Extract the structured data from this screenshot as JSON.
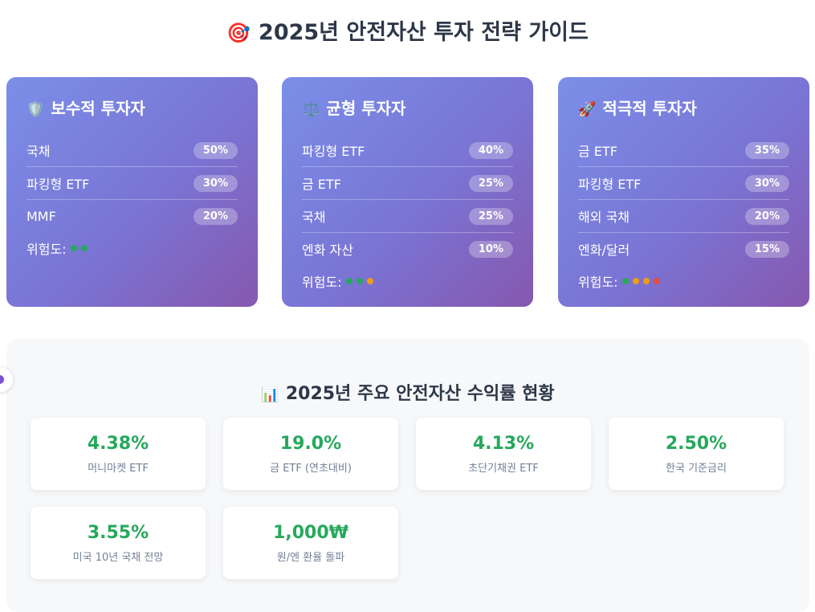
{
  "title": {
    "emoji": "🎯",
    "text": "2025년 안전자산 투자 전략 가이드"
  },
  "cards": [
    {
      "emoji": "🛡️",
      "title": "보수적 투자자",
      "rows": [
        {
          "label": "국채",
          "pct": "50%"
        },
        {
          "label": "파킹형 ETF",
          "pct": "30%"
        },
        {
          "label": "MMF",
          "pct": "20%"
        }
      ],
      "risk_label": "위험도:",
      "risk_dots": [
        "#27a85c",
        "#27a85c"
      ]
    },
    {
      "emoji": "⚖️",
      "title": "균형 투자자",
      "rows": [
        {
          "label": "파킹형 ETF",
          "pct": "40%"
        },
        {
          "label": "금 ETF",
          "pct": "25%"
        },
        {
          "label": "국채",
          "pct": "25%"
        },
        {
          "label": "엔화 자산",
          "pct": "10%"
        }
      ],
      "risk_label": "위험도:",
      "risk_dots": [
        "#27a85c",
        "#27a85c",
        "#f39c12"
      ]
    },
    {
      "emoji": "🚀",
      "title": "적극적 투자자",
      "rows": [
        {
          "label": "금 ETF",
          "pct": "35%"
        },
        {
          "label": "파킹형 ETF",
          "pct": "30%"
        },
        {
          "label": "해외 국채",
          "pct": "20%"
        },
        {
          "label": "엔화/달러",
          "pct": "15%"
        }
      ],
      "risk_label": "위험도:",
      "risk_dots": [
        "#27a85c",
        "#f39c12",
        "#f39c12",
        "#e74c3c"
      ]
    }
  ],
  "stats": {
    "emoji": "📊",
    "title": "2025년 주요 안전자산 수익률 현황",
    "items": [
      {
        "value": "4.38%",
        "label": "머니마켓 ETF"
      },
      {
        "value": "19.0%",
        "label": "금 ETF (연초대비)"
      },
      {
        "value": "4.13%",
        "label": "초단기채권 ETF"
      },
      {
        "value": "2.50%",
        "label": "한국 기준금리"
      },
      {
        "value": "3.55%",
        "label": "미국 10년 국채 전망"
      },
      {
        "value": "1,000₩",
        "label": "원/엔 환율 돌파"
      }
    ]
  }
}
